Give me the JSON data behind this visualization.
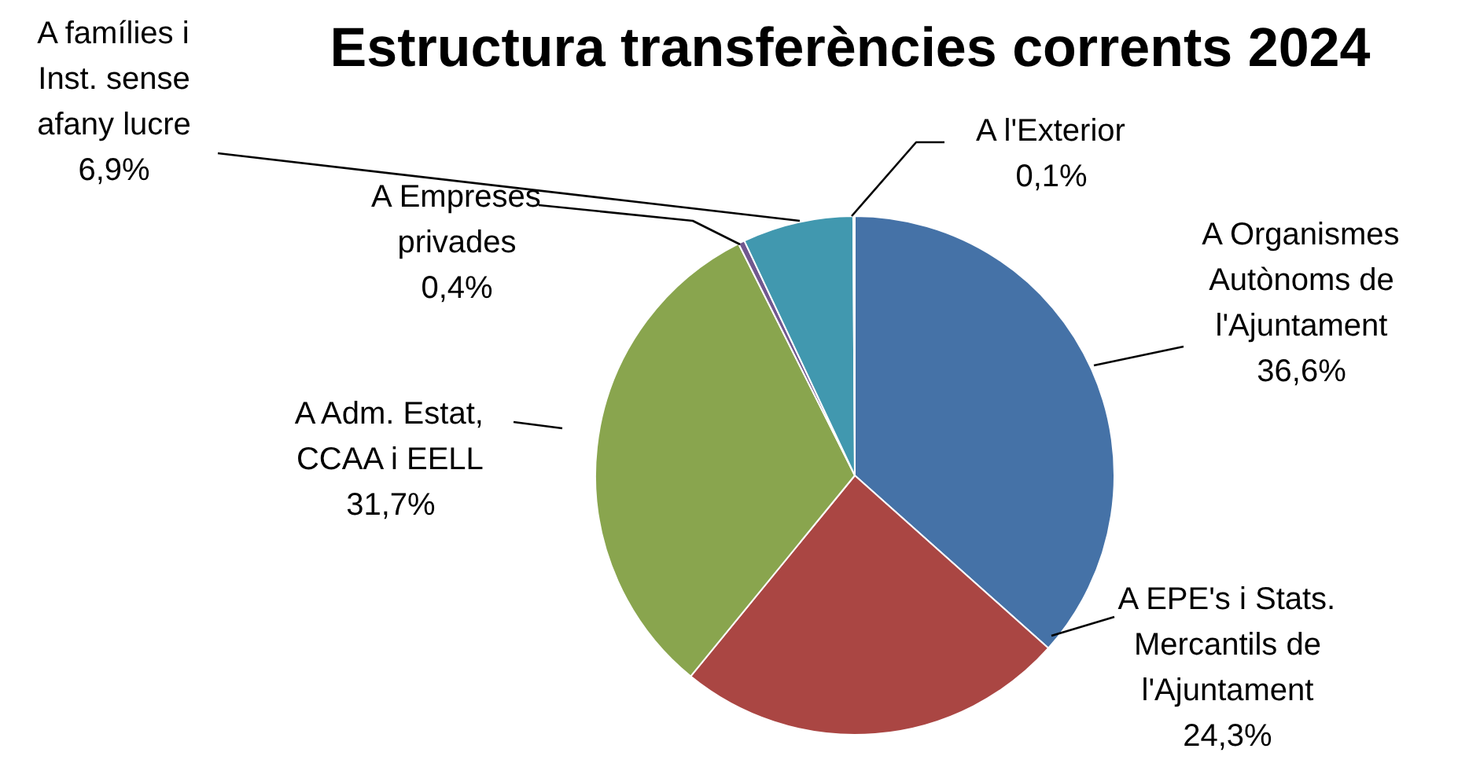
{
  "chart_data": {
    "type": "pie",
    "title": "Estructura transferències corrents 2024",
    "categories": [
      "A Organismes\nAutònoms de\nl'Ajuntament",
      "A EPE's i Stats.\nMercantils de\nl'Ajuntament",
      "A Adm. Estat,\nCCAA i EELL",
      "A Empreses\nprivades",
      "A famílies i\nInst. sense\nafany lucre",
      "A l'Exterior"
    ],
    "values": [
      36.6,
      24.3,
      31.7,
      0.4,
      6.9,
      0.1
    ],
    "colors": [
      "#4572a7",
      "#aa4643",
      "#89a54e",
      "#71588f",
      "#4198af",
      "#db843d"
    ],
    "value_labels": [
      "36,6%",
      "24,3%",
      "31,7%",
      "0,4%",
      "6,9%",
      "0,1%"
    ]
  }
}
